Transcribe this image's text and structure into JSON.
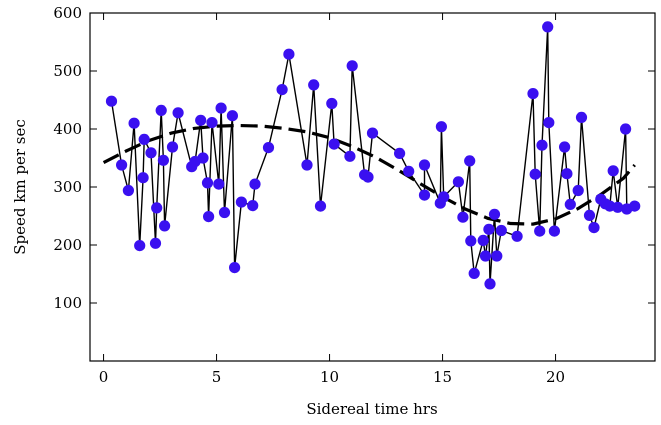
{
  "chart_data": {
    "type": "scatter",
    "xlabel": "Sidereal time hrs",
    "ylabel": "Speed km per sec",
    "xlim": [
      -0.6,
      24.4
    ],
    "ylim": [
      0,
      600
    ],
    "x_ticks": [
      0,
      5,
      10,
      15,
      20
    ],
    "y_ticks": [
      100,
      200,
      300,
      400,
      500,
      600
    ],
    "grid": false,
    "legend": "none",
    "colors": {
      "points": "#3a10f0",
      "line": "#000000",
      "fit": "#000000"
    },
    "series": [
      {
        "style": "points-connected",
        "points": [
          [
            0.35,
            448
          ],
          [
            0.8,
            338
          ],
          [
            1.1,
            294
          ],
          [
            1.35,
            410
          ],
          [
            1.6,
            199
          ],
          [
            1.75,
            316
          ],
          [
            1.8,
            382
          ],
          [
            2.1,
            359
          ],
          [
            2.3,
            203
          ],
          [
            2.35,
            264
          ],
          [
            2.55,
            432
          ],
          [
            2.65,
            346
          ],
          [
            2.7,
            233
          ],
          [
            3.05,
            369
          ],
          [
            3.3,
            428
          ],
          [
            3.9,
            335
          ],
          [
            4.05,
            344
          ],
          [
            4.3,
            415
          ],
          [
            4.4,
            350
          ],
          [
            4.6,
            307
          ],
          [
            4.65,
            249
          ],
          [
            4.8,
            411
          ],
          [
            5.1,
            305
          ],
          [
            5.2,
            436
          ],
          [
            5.35,
            256
          ],
          [
            5.7,
            423
          ],
          [
            5.8,
            161
          ],
          [
            6.1,
            274
          ],
          [
            6.6,
            268
          ],
          [
            6.7,
            305
          ],
          [
            7.3,
            368
          ],
          [
            7.9,
            468
          ],
          [
            8.2,
            529
          ],
          [
            9.0,
            338
          ],
          [
            9.3,
            476
          ],
          [
            9.6,
            267
          ],
          [
            10.1,
            444
          ],
          [
            10.2,
            374
          ],
          [
            10.9,
            353
          ],
          [
            11.0,
            509
          ],
          [
            11.55,
            321
          ],
          [
            11.7,
            317
          ],
          [
            11.9,
            393
          ],
          [
            13.1,
            358
          ],
          [
            13.5,
            327
          ],
          [
            14.2,
            286
          ],
          [
            14.2,
            338
          ],
          [
            14.9,
            272
          ],
          [
            14.95,
            404
          ],
          [
            15.05,
            283
          ],
          [
            15.7,
            309
          ],
          [
            15.9,
            248
          ],
          [
            16.2,
            345
          ],
          [
            16.25,
            207
          ],
          [
            16.4,
            151
          ],
          [
            16.8,
            208
          ],
          [
            16.9,
            181
          ],
          [
            17.05,
            227
          ],
          [
            17.1,
            133
          ],
          [
            17.3,
            253
          ],
          [
            17.4,
            181
          ],
          [
            17.6,
            225
          ],
          [
            18.3,
            215
          ],
          [
            19.0,
            461
          ],
          [
            19.1,
            322
          ],
          [
            19.3,
            224
          ],
          [
            19.4,
            372
          ],
          [
            19.65,
            576
          ],
          [
            19.7,
            411
          ],
          [
            19.95,
            224
          ],
          [
            20.4,
            369
          ],
          [
            20.5,
            323
          ],
          [
            20.65,
            270
          ],
          [
            21.0,
            294
          ],
          [
            21.15,
            420
          ],
          [
            21.5,
            251
          ],
          [
            21.7,
            230
          ],
          [
            22.0,
            279
          ],
          [
            22.2,
            271
          ],
          [
            22.4,
            267
          ],
          [
            22.55,
            328
          ],
          [
            22.75,
            265
          ],
          [
            23.1,
            400
          ],
          [
            23.15,
            262
          ],
          [
            23.5,
            267
          ]
        ]
      },
      {
        "style": "dashed-fit",
        "points": [
          [
            0.0,
            342
          ],
          [
            1.0,
            362
          ],
          [
            2.0,
            380
          ],
          [
            3.0,
            393
          ],
          [
            4.0,
            401
          ],
          [
            5.0,
            405
          ],
          [
            6.0,
            406
          ],
          [
            7.0,
            405
          ],
          [
            8.0,
            401
          ],
          [
            9.0,
            395
          ],
          [
            10.0,
            385
          ],
          [
            11.0,
            370
          ],
          [
            12.0,
            352
          ],
          [
            13.0,
            330
          ],
          [
            14.0,
            306
          ],
          [
            15.0,
            283
          ],
          [
            16.0,
            262
          ],
          [
            17.0,
            246
          ],
          [
            18.0,
            237
          ],
          [
            19.0,
            236
          ],
          [
            20.0,
            245
          ],
          [
            21.0,
            263
          ],
          [
            22.0,
            287
          ],
          [
            23.0,
            315
          ],
          [
            23.5,
            338
          ]
        ]
      }
    ]
  }
}
